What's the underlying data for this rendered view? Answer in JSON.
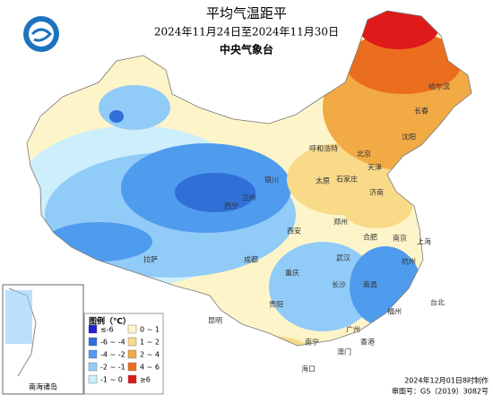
{
  "header": {
    "title": "平均气温距平",
    "period": "2024年11月24日至2024年11月30日",
    "agency": "中央气象台"
  },
  "legend": {
    "title": "图例（℃）",
    "items": [
      {
        "label": "≤-6",
        "color": "#1f1fd0"
      },
      {
        "label": "-6 ~ -4",
        "color": "#2f6fd6"
      },
      {
        "label": "-4 ~ -2",
        "color": "#4f9bee"
      },
      {
        "label": "-2 ~ -1",
        "color": "#91cbf7"
      },
      {
        "label": "-1 ~ 0",
        "color": "#cdeefb"
      },
      {
        "label": "0 ~ 1",
        "color": "#fdf5c9"
      },
      {
        "label": "1 ~ 2",
        "color": "#f8da88"
      },
      {
        "label": "2 ~ 4",
        "color": "#f2aa44"
      },
      {
        "label": "4 ~ 6",
        "color": "#eb6e1f"
      },
      {
        "label": "≥6",
        "color": "#df1a1a"
      }
    ]
  },
  "cities": [
    "哈尔滨",
    "长春",
    "沈阳",
    "呼和浩特",
    "北京",
    "天津",
    "石家庄",
    "太原",
    "济南",
    "银川",
    "兰州",
    "西宁",
    "西安",
    "郑州",
    "合肥",
    "南京",
    "上海",
    "武汉",
    "杭州",
    "成都",
    "重庆",
    "长沙",
    "南昌",
    "福州",
    "台北",
    "贵阳",
    "昆明",
    "南宁",
    "广州",
    "香港",
    "澳门",
    "海口",
    "拉萨"
  ],
  "inset": {
    "label": "南海诸岛"
  },
  "footer": {
    "made": "2024年12月01日8时制作",
    "approval": "审图号：GS（2019）3082号"
  }
}
